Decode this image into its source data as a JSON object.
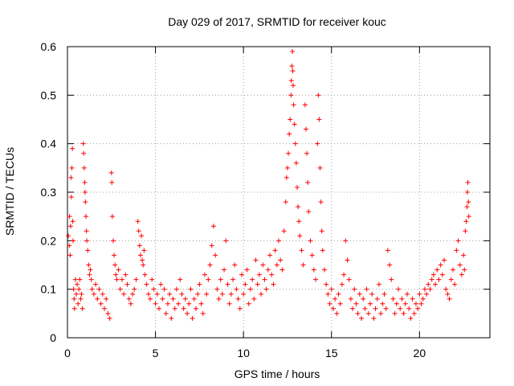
{
  "chart_data": {
    "type": "scatter",
    "title": "Day 029 of 2017, SRMTID for receiver kouc",
    "xlabel": "GPS time / hours",
    "ylabel": "SRMTID / TECUs",
    "xlim": [
      0,
      24
    ],
    "ylim": [
      0,
      0.6
    ],
    "xticks": [
      0,
      5,
      10,
      15,
      20
    ],
    "xtick_labels": [
      "0",
      "5",
      "10",
      "15",
      "20"
    ],
    "yticks": [
      0,
      0.1,
      0.2,
      0.3,
      0.4,
      0.5,
      0.6
    ],
    "ytick_labels": [
      "0",
      "0.1",
      "0.2",
      "0.3",
      "0.4",
      "0.5",
      "0.6"
    ],
    "grid": true,
    "marker": "+",
    "color": "#ff0000",
    "series": [
      {
        "name": "SRMTID",
        "points": [
          [
            0.05,
            0.21
          ],
          [
            0.1,
            0.19
          ],
          [
            0.12,
            0.25
          ],
          [
            0.15,
            0.17
          ],
          [
            0.18,
            0.23
          ],
          [
            0.2,
            0.33
          ],
          [
            0.22,
            0.29
          ],
          [
            0.25,
            0.35
          ],
          [
            0.28,
            0.39
          ],
          [
            0.3,
            0.24
          ],
          [
            0.32,
            0.2
          ],
          [
            0.35,
            0.1
          ],
          [
            0.38,
            0.08
          ],
          [
            0.4,
            0.06
          ],
          [
            0.45,
            0.12
          ],
          [
            0.5,
            0.09
          ],
          [
            0.55,
            0.11
          ],
          [
            0.6,
            0.07
          ],
          [
            0.65,
            0.1
          ],
          [
            0.7,
            0.12
          ],
          [
            0.75,
            0.08
          ],
          [
            0.8,
            0.09
          ],
          [
            0.85,
            0.06
          ],
          [
            0.9,
            0.4
          ],
          [
            0.92,
            0.38
          ],
          [
            0.95,
            0.35
          ],
          [
            0.98,
            0.32
          ],
          [
            1.0,
            0.3
          ],
          [
            1.02,
            0.28
          ],
          [
            1.05,
            0.25
          ],
          [
            1.08,
            0.22
          ],
          [
            1.1,
            0.2
          ],
          [
            1.15,
            0.18
          ],
          [
            1.2,
            0.15
          ],
          [
            1.25,
            0.13
          ],
          [
            1.3,
            0.14
          ],
          [
            1.35,
            0.12
          ],
          [
            1.4,
            0.1
          ],
          [
            1.5,
            0.09
          ],
          [
            1.6,
            0.11
          ],
          [
            1.7,
            0.08
          ],
          [
            1.8,
            0.1
          ],
          [
            1.9,
            0.07
          ],
          [
            2.0,
            0.09
          ],
          [
            2.1,
            0.06
          ],
          [
            2.2,
            0.08
          ],
          [
            2.3,
            0.05
          ],
          [
            2.4,
            0.04
          ],
          [
            2.5,
            0.34
          ],
          [
            2.52,
            0.32
          ],
          [
            2.55,
            0.25
          ],
          [
            2.6,
            0.2
          ],
          [
            2.65,
            0.17
          ],
          [
            2.7,
            0.15
          ],
          [
            2.75,
            0.13
          ],
          [
            2.8,
            0.12
          ],
          [
            2.9,
            0.14
          ],
          [
            3.0,
            0.1
          ],
          [
            3.1,
            0.12
          ],
          [
            3.2,
            0.09
          ],
          [
            3.3,
            0.13
          ],
          [
            3.4,
            0.11
          ],
          [
            3.5,
            0.08
          ],
          [
            3.6,
            0.07
          ],
          [
            3.7,
            0.09
          ],
          [
            3.8,
            0.1
          ],
          [
            3.9,
            0.12
          ],
          [
            4.0,
            0.24
          ],
          [
            4.05,
            0.22
          ],
          [
            4.1,
            0.19
          ],
          [
            4.15,
            0.17
          ],
          [
            4.2,
            0.21
          ],
          [
            4.25,
            0.16
          ],
          [
            4.3,
            0.15
          ],
          [
            4.35,
            0.18
          ],
          [
            4.4,
            0.13
          ],
          [
            4.5,
            0.11
          ],
          [
            4.6,
            0.09
          ],
          [
            4.7,
            0.08
          ],
          [
            4.8,
            0.12
          ],
          [
            4.9,
            0.1
          ],
          [
            5.0,
            0.07
          ],
          [
            5.1,
            0.09
          ],
          [
            5.2,
            0.06
          ],
          [
            5.3,
            0.11
          ],
          [
            5.4,
            0.08
          ],
          [
            5.5,
            0.1
          ],
          [
            5.6,
            0.05
          ],
          [
            5.7,
            0.07
          ],
          [
            5.8,
            0.09
          ],
          [
            5.9,
            0.04
          ],
          [
            6.0,
            0.08
          ],
          [
            6.1,
            0.06
          ],
          [
            6.2,
            0.1
          ],
          [
            6.3,
            0.07
          ],
          [
            6.4,
            0.12
          ],
          [
            6.5,
            0.09
          ],
          [
            6.6,
            0.06
          ],
          [
            6.7,
            0.08
          ],
          [
            6.8,
            0.05
          ],
          [
            6.9,
            0.07
          ],
          [
            7.0,
            0.1
          ],
          [
            7.1,
            0.04
          ],
          [
            7.2,
            0.08
          ],
          [
            7.3,
            0.06
          ],
          [
            7.4,
            0.09
          ],
          [
            7.5,
            0.11
          ],
          [
            7.6,
            0.07
          ],
          [
            7.7,
            0.05
          ],
          [
            7.8,
            0.13
          ],
          [
            7.9,
            0.09
          ],
          [
            8.0,
            0.12
          ],
          [
            8.1,
            0.15
          ],
          [
            8.2,
            0.19
          ],
          [
            8.3,
            0.23
          ],
          [
            8.4,
            0.17
          ],
          [
            8.5,
            0.1
          ],
          [
            8.6,
            0.08
          ],
          [
            8.7,
            0.12
          ],
          [
            8.8,
            0.09
          ],
          [
            8.9,
            0.14
          ],
          [
            9.0,
            0.2
          ],
          [
            9.1,
            0.11
          ],
          [
            9.2,
            0.07
          ],
          [
            9.3,
            0.09
          ],
          [
            9.4,
            0.12
          ],
          [
            9.5,
            0.15
          ],
          [
            9.6,
            0.1
          ],
          [
            9.7,
            0.08
          ],
          [
            9.8,
            0.06
          ],
          [
            9.9,
            0.13
          ],
          [
            10.0,
            0.09
          ],
          [
            10.1,
            0.11
          ],
          [
            10.2,
            0.14
          ],
          [
            10.3,
            0.07
          ],
          [
            10.4,
            0.1
          ],
          [
            10.5,
            0.12
          ],
          [
            10.6,
            0.08
          ],
          [
            10.7,
            0.16
          ],
          [
            10.8,
            0.11
          ],
          [
            10.9,
            0.13
          ],
          [
            11.0,
            0.09
          ],
          [
            11.1,
            0.15
          ],
          [
            11.2,
            0.12
          ],
          [
            11.3,
            0.1
          ],
          [
            11.4,
            0.14
          ],
          [
            11.5,
            0.17
          ],
          [
            11.6,
            0.13
          ],
          [
            11.7,
            0.11
          ],
          [
            11.8,
            0.18
          ],
          [
            11.9,
            0.15
          ],
          [
            12.0,
            0.2
          ],
          [
            12.1,
            0.16
          ],
          [
            12.2,
            0.14
          ],
          [
            12.3,
            0.22
          ],
          [
            12.4,
            0.28
          ],
          [
            12.45,
            0.33
          ],
          [
            12.5,
            0.35
          ],
          [
            12.55,
            0.38
          ],
          [
            12.6,
            0.42
          ],
          [
            12.65,
            0.45
          ],
          [
            12.7,
            0.5
          ],
          [
            12.72,
            0.53
          ],
          [
            12.75,
            0.56
          ],
          [
            12.78,
            0.59
          ],
          [
            12.8,
            0.55
          ],
          [
            12.82,
            0.52
          ],
          [
            12.85,
            0.48
          ],
          [
            12.9,
            0.44
          ],
          [
            12.95,
            0.4
          ],
          [
            13.0,
            0.36
          ],
          [
            13.05,
            0.31
          ],
          [
            13.1,
            0.27
          ],
          [
            13.15,
            0.24
          ],
          [
            13.2,
            0.21
          ],
          [
            13.3,
            0.18
          ],
          [
            13.4,
            0.15
          ],
          [
            13.5,
            0.48
          ],
          [
            13.55,
            0.43
          ],
          [
            13.6,
            0.38
          ],
          [
            13.65,
            0.32
          ],
          [
            13.7,
            0.26
          ],
          [
            13.8,
            0.2
          ],
          [
            13.9,
            0.17
          ],
          [
            14.0,
            0.14
          ],
          [
            14.1,
            0.12
          ],
          [
            14.2,
            0.4
          ],
          [
            14.25,
            0.5
          ],
          [
            14.3,
            0.45
          ],
          [
            14.35,
            0.35
          ],
          [
            14.4,
            0.28
          ],
          [
            14.45,
            0.22
          ],
          [
            14.5,
            0.18
          ],
          [
            14.6,
            0.14
          ],
          [
            14.7,
            0.11
          ],
          [
            14.8,
            0.09
          ],
          [
            14.9,
            0.07
          ],
          [
            15.0,
            0.1
          ],
          [
            15.1,
            0.06
          ],
          [
            15.2,
            0.08
          ],
          [
            15.3,
            0.05
          ],
          [
            15.4,
            0.09
          ],
          [
            15.5,
            0.07
          ],
          [
            15.6,
            0.11
          ],
          [
            15.7,
            0.13
          ],
          [
            15.8,
            0.2
          ],
          [
            15.9,
            0.16
          ],
          [
            16.0,
            0.12
          ],
          [
            16.1,
            0.08
          ],
          [
            16.2,
            0.06
          ],
          [
            16.3,
            0.1
          ],
          [
            16.4,
            0.07
          ],
          [
            16.5,
            0.05
          ],
          [
            16.6,
            0.09
          ],
          [
            16.7,
            0.04
          ],
          [
            16.8,
            0.08
          ],
          [
            16.9,
            0.06
          ],
          [
            17.0,
            0.1
          ],
          [
            17.1,
            0.05
          ],
          [
            17.2,
            0.07
          ],
          [
            17.3,
            0.09
          ],
          [
            17.4,
            0.04
          ],
          [
            17.5,
            0.06
          ],
          [
            17.6,
            0.08
          ],
          [
            17.7,
            0.11
          ],
          [
            17.8,
            0.05
          ],
          [
            17.9,
            0.07
          ],
          [
            18.0,
            0.09
          ],
          [
            18.1,
            0.06
          ],
          [
            18.2,
            0.18
          ],
          [
            18.3,
            0.15
          ],
          [
            18.4,
            0.12
          ],
          [
            18.5,
            0.08
          ],
          [
            18.6,
            0.05
          ],
          [
            18.7,
            0.07
          ],
          [
            18.8,
            0.1
          ],
          [
            18.9,
            0.06
          ],
          [
            19.0,
            0.08
          ],
          [
            19.1,
            0.05
          ],
          [
            19.2,
            0.07
          ],
          [
            19.3,
            0.09
          ],
          [
            19.4,
            0.06
          ],
          [
            19.5,
            0.04
          ],
          [
            19.6,
            0.08
          ],
          [
            19.7,
            0.05
          ],
          [
            19.8,
            0.07
          ],
          [
            19.9,
            0.06
          ],
          [
            20.0,
            0.09
          ],
          [
            20.1,
            0.07
          ],
          [
            20.2,
            0.08
          ],
          [
            20.3,
            0.1
          ],
          [
            20.4,
            0.09
          ],
          [
            20.5,
            0.11
          ],
          [
            20.6,
            0.1
          ],
          [
            20.7,
            0.12
          ],
          [
            20.8,
            0.13
          ],
          [
            20.9,
            0.11
          ],
          [
            21.0,
            0.14
          ],
          [
            21.1,
            0.12
          ],
          [
            21.2,
            0.15
          ],
          [
            21.3,
            0.13
          ],
          [
            21.4,
            0.16
          ],
          [
            21.5,
            0.1
          ],
          [
            21.6,
            0.09
          ],
          [
            21.7,
            0.08
          ],
          [
            21.8,
            0.12
          ],
          [
            21.9,
            0.14
          ],
          [
            22.0,
            0.11
          ],
          [
            22.1,
            0.18
          ],
          [
            22.2,
            0.2
          ],
          [
            22.3,
            0.15
          ],
          [
            22.4,
            0.13
          ],
          [
            22.5,
            0.17
          ],
          [
            22.55,
            0.14
          ],
          [
            22.6,
            0.22
          ],
          [
            22.65,
            0.24
          ],
          [
            22.7,
            0.27
          ],
          [
            22.72,
            0.3
          ],
          [
            22.75,
            0.32
          ],
          [
            22.78,
            0.28
          ],
          [
            22.8,
            0.25
          ]
        ]
      }
    ]
  }
}
